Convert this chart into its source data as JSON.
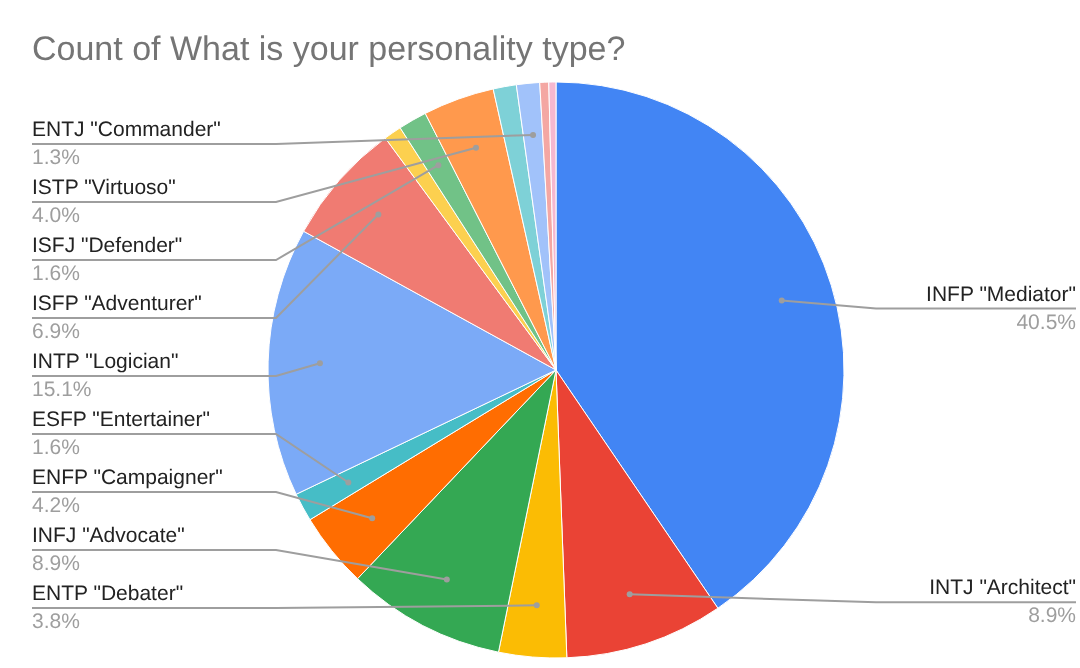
{
  "chart_data": {
    "type": "pie",
    "title": "Count of What is your personality type?",
    "categories": [
      "INFP \"Mediator\"",
      "INTJ \"Architect\"",
      "ENTP \"Debater\"",
      "INFJ \"Advocate\"",
      "ENFP \"Campaigner\"",
      "ESFP \"Entertainer\"",
      "INTP \"Logician\"",
      "ISFP \"Adventurer\"",
      null,
      "ISFJ \"Defender\"",
      "ISTP \"Virtuoso\"",
      null,
      "ENTJ \"Commander\"",
      null,
      null
    ],
    "values": [
      40.5,
      8.9,
      3.8,
      8.9,
      4.2,
      1.6,
      15.1,
      6.9,
      1.0,
      1.6,
      4.0,
      1.3,
      1.3,
      0.5,
      0.4
    ],
    "value_labels": [
      "40.5%",
      "8.9%",
      "3.8%",
      "8.9%",
      "4.2%",
      "1.6%",
      "15.1%",
      "6.9%",
      null,
      "1.6%",
      "4.0%",
      null,
      "1.3%",
      null,
      null
    ],
    "colors": [
      "#4285f4",
      "#ea4335",
      "#fbbc04",
      "#34a853",
      "#ff6d01",
      "#46bdc6",
      "#7baaf7",
      "#f07b72",
      "#fcd04f",
      "#71c287",
      "#ff994d",
      "#7ed1d7",
      "#a1c2fa",
      "#f4a7a3",
      "#f6b8d0"
    ]
  }
}
